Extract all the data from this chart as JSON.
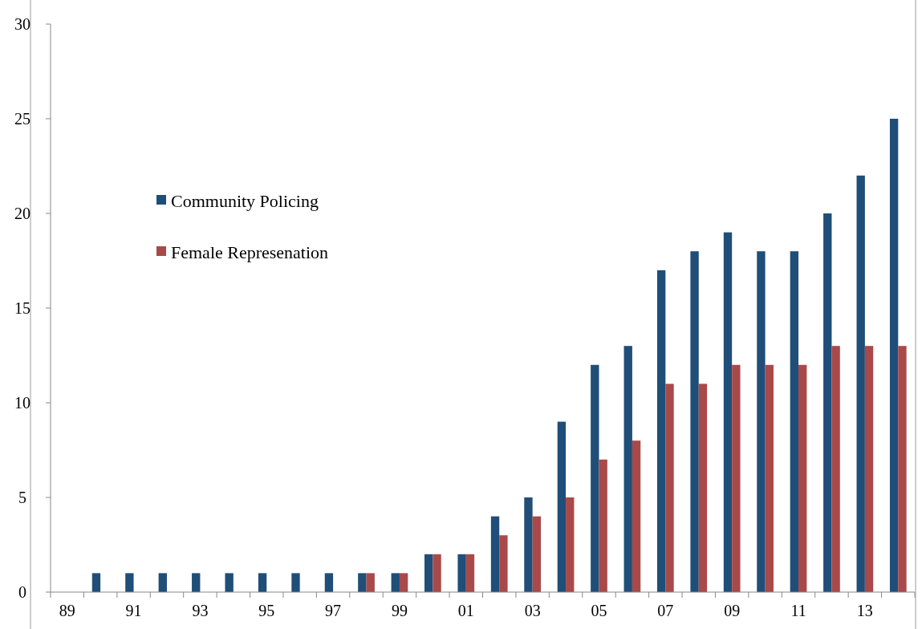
{
  "chart_data": {
    "type": "bar",
    "categories": [
      "89",
      null,
      "91",
      null,
      "93",
      null,
      "95",
      null,
      "97",
      null,
      "99",
      null,
      "01",
      null,
      "03",
      null,
      "05",
      null,
      "07",
      null,
      "09",
      null,
      "11",
      null,
      "13",
      null
    ],
    "series": [
      {
        "name": "Community Policing",
        "color": "#1f4e79",
        "values": [
          null,
          1,
          1,
          1,
          1,
          1,
          1,
          1,
          1,
          1,
          1,
          2,
          2,
          4,
          5,
          9,
          12,
          13,
          17,
          18,
          19,
          18,
          18,
          20,
          22,
          25
        ]
      },
      {
        "name": "Female Represenation",
        "color": "#a9494a",
        "values": [
          null,
          null,
          null,
          null,
          null,
          null,
          null,
          null,
          null,
          1,
          1,
          2,
          2,
          3,
          4,
          5,
          7,
          8,
          11,
          11,
          12,
          12,
          12,
          13,
          13,
          13
        ]
      }
    ],
    "ylim": [
      0,
      30
    ],
    "yticks": [
      0,
      5,
      10,
      15,
      20,
      25,
      30
    ],
    "legend": "left"
  }
}
